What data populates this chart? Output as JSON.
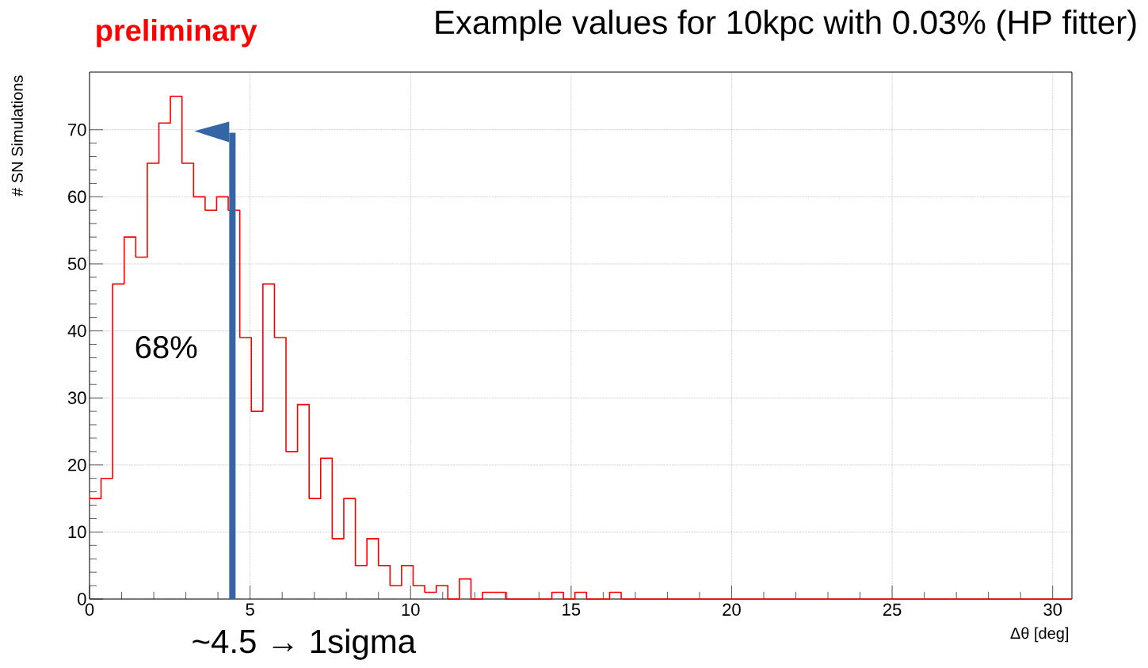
{
  "chart_data": {
    "type": "histogram",
    "title": "Example values for 10kpc with 0.03% (HP fitter)",
    "xlabel": "Δθ [deg]",
    "ylabel": "# SN Simulations",
    "annotations": [
      "preliminary",
      "68%"
    ],
    "bins": [
      0,
      0.36,
      0.72,
      1.08,
      1.44,
      1.8,
      2.16,
      2.52,
      2.88,
      3.24,
      3.6,
      3.96,
      4.32,
      4.68,
      5.04,
      5.4,
      5.76,
      6.12,
      6.48,
      6.84,
      7.2,
      7.56,
      7.92,
      8.28,
      8.64,
      9,
      9.36,
      9.72,
      10.08,
      10.44,
      10.8,
      11.16,
      11.52,
      11.88,
      12.24,
      12.6,
      12.96,
      13.32,
      13.68,
      14.04,
      14.4,
      14.76,
      15.12,
      15.48,
      15.84,
      16.2,
      16.56,
      16.92,
      17.28,
      17.64,
      18,
      18.36,
      18.72,
      19.08,
      19.44,
      19.8,
      20.16,
      20.52,
      20.88,
      21.24,
      21.6,
      21.96,
      22.32,
      22.68,
      23.04,
      23.4,
      23.76,
      24.12,
      24.48,
      24.84,
      25.2,
      25.56,
      25.92,
      26.28,
      26.64,
      27,
      27.36,
      27.72,
      28.08,
      28.44,
      28.8,
      29.16,
      29.52,
      29.88,
      30.24,
      30.6
    ],
    "values": [
      15,
      18,
      47,
      54,
      51,
      65,
      71,
      75,
      65,
      60,
      58,
      60,
      58,
      39,
      28,
      47,
      39,
      22,
      29,
      15,
      21,
      9,
      15,
      5,
      9,
      5,
      2,
      5,
      2,
      1,
      2,
      0,
      3,
      0,
      1,
      1,
      0,
      0,
      0,
      0,
      1,
      0,
      1,
      0,
      0,
      1,
      0,
      0,
      0,
      0,
      0,
      0,
      0,
      0,
      0,
      0,
      0,
      0,
      0,
      0,
      0,
      0,
      0,
      0,
      0,
      0,
      0,
      0,
      0,
      0,
      0,
      0,
      0,
      0,
      0,
      0,
      0,
      0,
      0,
      0,
      0,
      0,
      0,
      0,
      0
    ],
    "color": "#ff0000",
    "xlim": [
      0,
      30.6
    ],
    "ylim": [
      0,
      78.6
    ],
    "xticks": [
      0,
      5,
      10,
      15,
      20,
      25,
      30
    ],
    "yticks": [
      0,
      10,
      20,
      30,
      40,
      50,
      60,
      70
    ],
    "grid": true,
    "ref_lines": [
      {
        "axis": "x",
        "value": 4.45,
        "label": "~4.5 → 1sigma",
        "color": "#3465a4"
      }
    ]
  }
}
